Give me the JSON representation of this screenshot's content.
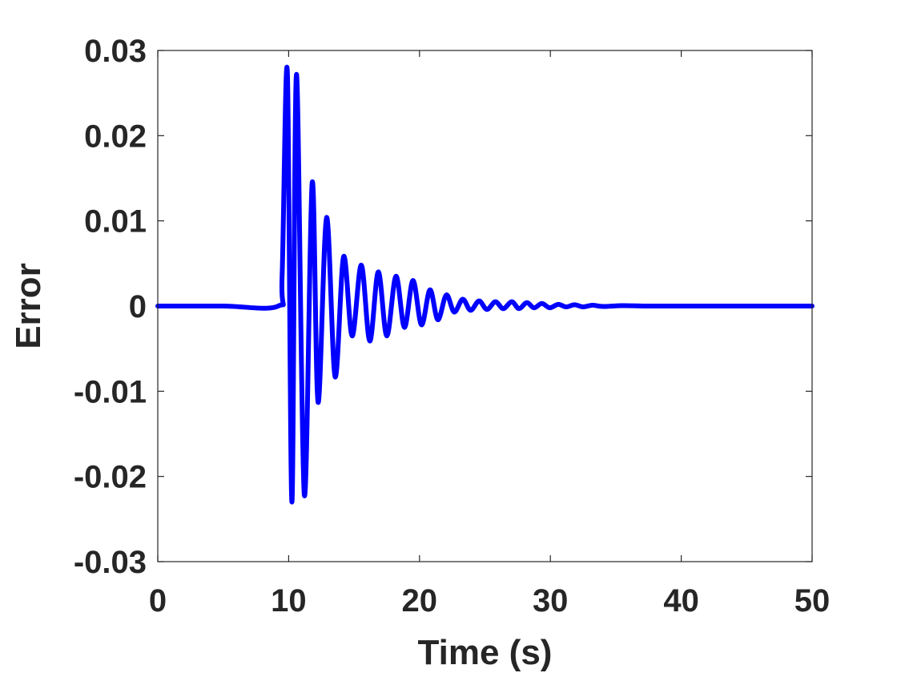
{
  "chart_data": {
    "type": "line",
    "title": "",
    "xlabel": "Time (s)",
    "ylabel": "Error",
    "xlim": [
      0,
      50
    ],
    "ylim": [
      -0.03,
      0.03
    ],
    "xticks": [
      0,
      10,
      20,
      30,
      40,
      50
    ],
    "xtick_labels": [
      "0",
      "10",
      "20",
      "30",
      "40",
      "50"
    ],
    "yticks": [
      -0.03,
      -0.02,
      -0.01,
      0,
      0.01,
      0.02,
      0.03
    ],
    "ytick_labels": [
      "-0.03",
      "-0.02",
      "-0.01",
      "0",
      "0.01",
      "0.02",
      "0.03"
    ],
    "grid": false,
    "box": true,
    "series": [
      {
        "color": "#0000ff",
        "x": [
          0,
          5,
          9.2,
          9.5,
          9.9,
          10.25,
          10.6,
          11.2,
          11.8,
          12.25,
          12.9,
          13.55,
          14.2,
          14.85,
          15.55,
          16.2,
          16.85,
          17.5,
          18.2,
          18.85,
          19.5,
          20.15,
          20.8,
          21.4,
          22.05,
          22.65,
          23.3,
          23.9,
          24.55,
          25.15,
          25.8,
          26.4,
          27.05,
          27.6,
          28.2,
          28.75,
          29.35,
          29.95,
          30.6,
          31.2,
          31.85,
          32.5,
          33.2,
          34.0,
          35.5,
          37.5,
          40,
          45,
          50
        ],
        "y": [
          0,
          0,
          0,
          0.0035,
          0.0275,
          -0.023,
          0.0272,
          -0.0222,
          0.0145,
          -0.0113,
          0.0104,
          -0.0083,
          0.0058,
          -0.0035,
          0.0048,
          -0.0041,
          0.004,
          -0.0035,
          0.0035,
          -0.0025,
          0.003,
          -0.0022,
          0.0019,
          -0.0016,
          0.0013,
          -0.0007,
          0.0008,
          -0.0005,
          0.0006,
          -0.0004,
          0.0005,
          -0.0003,
          0.0005,
          -0.0003,
          0.0004,
          -0.0002,
          0.0003,
          -0.0002,
          0.0002,
          -0.0001,
          0.00015,
          -0.0001,
          0.0001,
          -5e-05,
          5e-05,
          0,
          0,
          0,
          0
        ]
      }
    ]
  }
}
